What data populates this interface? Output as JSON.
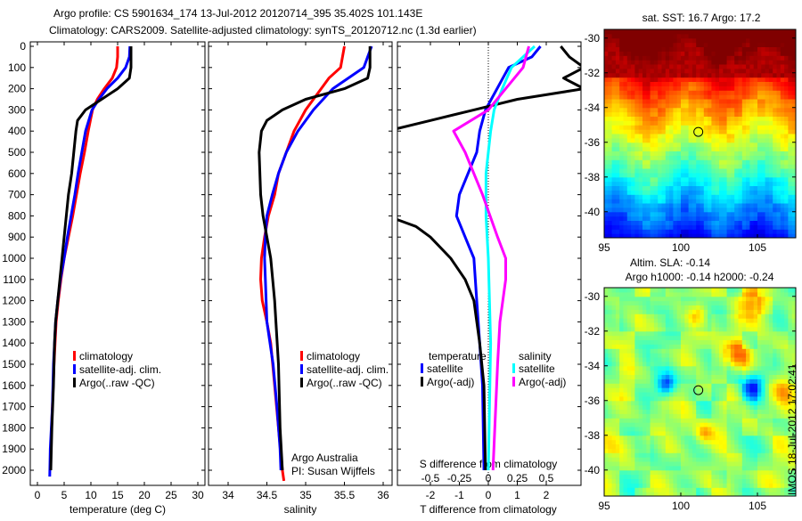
{
  "title_line1": "Argo profile: CS 5901634_174 13-Jul-2012 20120714_395 35.402S 101.143E",
  "title_line2": "Climatology: CARS2009. Satellite-adjusted climatology: synTS_20120712.nc (1.3d earlier)",
  "colors": {
    "red": "#ff0000",
    "blue": "#0000ff",
    "black": "#000000",
    "cyan": "#00ffff",
    "magenta": "#ff00ff"
  },
  "chart_data": [
    {
      "type": "line",
      "name": "temperature",
      "xlabel": "temperature (deg C)",
      "xlim": [
        -1,
        31
      ],
      "ylim": [
        2080,
        0
      ],
      "xticks": [
        0,
        5,
        10,
        15,
        20,
        25,
        30
      ],
      "yticks": [
        0,
        100,
        200,
        300,
        400,
        500,
        600,
        700,
        800,
        900,
        1000,
        1100,
        1200,
        1300,
        1400,
        1500,
        1600,
        1700,
        1800,
        1900,
        2000
      ],
      "legend": [
        "climatology",
        "satellite-adj. clim.",
        "Argo(..raw -QC)"
      ],
      "series": [
        {
          "name": "climatology",
          "color": "red",
          "depth": [
            0,
            50,
            100,
            150,
            200,
            250,
            300,
            400,
            500,
            600,
            700,
            800,
            900,
            1000,
            1100,
            1200,
            1300,
            1400,
            1500,
            1700,
            1900,
            2000
          ],
          "values": [
            15,
            15,
            14.8,
            14,
            12.5,
            11.2,
            10.3,
            9.5,
            8.8,
            8,
            7.3,
            6.6,
            5.8,
            5,
            4.4,
            3.9,
            3.5,
            3.3,
            3.1,
            2.8,
            2.5,
            2.4
          ]
        },
        {
          "name": "satellite-adj. clim.",
          "color": "blue",
          "depth": [
            0,
            50,
            100,
            150,
            200,
            250,
            300,
            400,
            500,
            600,
            700,
            800,
            900,
            1000,
            1100,
            1200,
            1300,
            1500,
            1700,
            1900,
            2030
          ],
          "values": [
            17.3,
            17.2,
            16.5,
            15,
            13,
            11.5,
            10.2,
            9,
            8.3,
            7.6,
            7,
            6.3,
            5.6,
            5,
            4.3,
            3.8,
            3.4,
            3,
            2.8,
            2.4,
            2.3
          ]
        },
        {
          "name": "Argo(..raw -QC)",
          "color": "black",
          "depth": [
            0,
            100,
            150,
            200,
            250,
            300,
            350,
            400,
            500,
            600,
            700,
            800,
            900,
            1000,
            1100,
            1200,
            1300,
            1400,
            1600,
            1800,
            2000
          ],
          "values": [
            17.5,
            17.5,
            17.2,
            15,
            12,
            9,
            7.5,
            7.2,
            6.8,
            6.4,
            5.8,
            5.4,
            5,
            4.6,
            4.2,
            3.8,
            3.4,
            3.2,
            3,
            2.7,
            2.5
          ]
        }
      ]
    },
    {
      "type": "line",
      "name": "salinity",
      "xlabel": "salinity",
      "xlim": [
        33.75,
        36.1
      ],
      "ylim": [
        2080,
        0
      ],
      "xticks": [
        34,
        34.5,
        35,
        35.5,
        36
      ],
      "legend": [
        "climatology",
        "satellite-adj. clim.",
        "Argo(..raw -QC)"
      ],
      "annotation": [
        "Argo Australia",
        "PI: Susan Wijffels"
      ],
      "series": [
        {
          "name": "climatology",
          "color": "red",
          "depth": [
            0,
            100,
            150,
            200,
            300,
            400,
            500,
            600,
            700,
            800,
            900,
            1000,
            1100,
            1200,
            1300,
            1400,
            1600,
            1800,
            2000,
            2050
          ],
          "values": [
            35.5,
            35.45,
            35.3,
            35.2,
            35,
            34.85,
            34.75,
            34.65,
            34.6,
            34.52,
            34.47,
            34.43,
            34.42,
            34.44,
            34.5,
            34.55,
            34.6,
            34.65,
            34.7,
            34.72
          ]
        },
        {
          "name": "satellite-adj. clim.",
          "color": "blue",
          "depth": [
            0,
            50,
            100,
            150,
            200,
            300,
            400,
            500,
            600,
            700,
            800,
            900,
            1000,
            1100,
            1300,
            1500,
            1700,
            1900,
            2000
          ],
          "values": [
            35.85,
            35.8,
            35.75,
            35.55,
            35.35,
            35.1,
            34.9,
            34.75,
            34.65,
            34.57,
            34.5,
            34.48,
            34.47,
            34.48,
            34.5,
            34.58,
            34.63,
            34.67,
            34.68
          ]
        },
        {
          "name": "Argo(..raw -QC)",
          "color": "black",
          "depth": [
            0,
            100,
            150,
            200,
            250,
            300,
            350,
            400,
            500,
            700,
            800,
            900,
            1000,
            1200,
            1500,
            1800,
            2000
          ],
          "values": [
            35.83,
            35.83,
            35.8,
            35.5,
            35.0,
            34.7,
            34.5,
            34.43,
            34.4,
            34.42,
            34.45,
            34.5,
            34.55,
            34.6,
            34.65,
            34.67,
            34.7
          ]
        }
      ]
    },
    {
      "type": "line",
      "name": "differences",
      "xlabel": "T difference from climatology",
      "x2label": "S difference from climatology",
      "xlim": [
        -3,
        3.2
      ],
      "xticks": [
        -2,
        -1,
        0,
        1,
        2
      ],
      "x2ticks": [
        -0.5,
        -0.25,
        0,
        0.25,
        0.5
      ],
      "x2ticklabels": [
        "-0.5",
        "-0.25",
        "0",
        "0.25",
        "0.5"
      ],
      "legend_temperature_title": "temperature",
      "legend_salinity_title": "salinity",
      "legend": [
        "satellite",
        "Argo(-adj)",
        "satellite",
        "Argo(-adj)"
      ],
      "series": [
        {
          "name": "T satellite",
          "color": "blue",
          "axis": "T",
          "depth": [
            0,
            50,
            100,
            200,
            300,
            400,
            500,
            700,
            800,
            900,
            1000,
            1200,
            1400,
            1600,
            2000
          ],
          "values": [
            1.8,
            1.5,
            0.7,
            0.3,
            -0.1,
            -0.3,
            -0.4,
            -1.0,
            -1.1,
            -0.8,
            -0.5,
            -0.4,
            -0.3,
            -0.2,
            -0.15
          ]
        },
        {
          "name": "T Argo(-adj)",
          "color": "black",
          "axis": "T",
          "depth": [
            0,
            50,
            100,
            150,
            200,
            250,
            300,
            350,
            400,
            800,
            850,
            900,
            1000,
            1100,
            1200,
            1400,
            1600,
            2000
          ],
          "values": [
            2.5,
            2.8,
            3.3,
            2.6,
            3.3,
            1.0,
            -0.5,
            -2,
            -3.5,
            -3.5,
            -2.5,
            -2,
            -1.3,
            -0.8,
            -0.5,
            -0.3,
            -0.15,
            -0.1
          ]
        },
        {
          "name": "S satellite",
          "color": "cyan",
          "axis": "S",
          "depth": [
            0,
            100,
            200,
            300,
            400,
            600,
            800,
            1000,
            1400,
            2000
          ],
          "values": [
            0.4,
            0.2,
            0.12,
            0.05,
            0.02,
            -0.02,
            -0.02,
            0,
            0.02,
            0
          ]
        },
        {
          "name": "S Argo(-adj)",
          "color": "magenta",
          "axis": "S",
          "depth": [
            0,
            100,
            200,
            300,
            400,
            500,
            700,
            900,
            1000,
            1100,
            1300,
            1500,
            2000
          ],
          "values": [
            0.35,
            0.3,
            0.15,
            0,
            -0.3,
            -0.2,
            -0.05,
            0.08,
            0.15,
            0.15,
            0.1,
            0.08,
            0.04
          ]
        }
      ]
    },
    {
      "type": "heatmap",
      "name": "sst-map",
      "title": "sat. SST: 16.7  Argo: 17.2",
      "xticks": [
        95,
        100,
        105
      ],
      "yticks": [
        -30,
        -32,
        -34,
        -36,
        -38,
        -40
      ],
      "xlim": [
        95,
        107.5
      ],
      "ylim": [
        -41.5,
        -29.5
      ],
      "marker": {
        "lon": 101.143,
        "lat": -35.402
      }
    },
    {
      "type": "heatmap",
      "name": "sla-map",
      "title_line1": "Altim. SLA: -0.14",
      "title_line2": "Argo h1000: -0.14  h2000: -0.24",
      "xticks": [
        95,
        100,
        105
      ],
      "yticks": [
        -30,
        -32,
        -34,
        -36,
        -38,
        -40
      ],
      "xlim": [
        95,
        107.5
      ],
      "ylim": [
        -41.5,
        -29.5
      ],
      "marker": {
        "lon": 101.143,
        "lat": -35.402
      }
    }
  ],
  "footer_stamp": "IMOS 18-Jul-2012 17:02:41"
}
